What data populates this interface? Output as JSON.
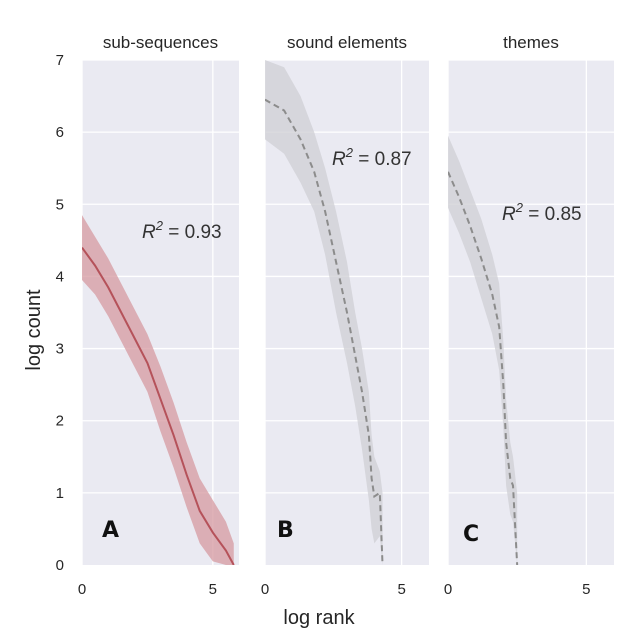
{
  "chart_data": {
    "type": "line",
    "ylabel": "log count",
    "xlabel": "log rank",
    "ylim": [
      0,
      7
    ],
    "yticks": [
      "0",
      "1",
      "2",
      "3",
      "4",
      "5",
      "6",
      "7"
    ],
    "grid": true,
    "panels": [
      {
        "title": "sub-sequences",
        "letter": "A",
        "annotation": "R² = 0.93",
        "r2_prefix": "R",
        "r2_exp": "2",
        "r2_value": " = 0.93",
        "xlim": [
          0,
          6
        ],
        "xticks": [
          "0",
          "5"
        ],
        "color": "#b5525a",
        "band_color": "#d59aa0",
        "style": "solid",
        "series": {
          "x": [
            0,
            0.5,
            1.0,
            1.5,
            2.0,
            2.5,
            3.0,
            3.5,
            4.0,
            4.5,
            5.0,
            5.5,
            5.8
          ],
          "y": [
            4.4,
            4.15,
            3.85,
            3.5,
            3.15,
            2.8,
            2.3,
            1.8,
            1.25,
            0.75,
            0.45,
            0.2,
            0.0
          ],
          "upper": [
            4.85,
            4.55,
            4.25,
            3.9,
            3.55,
            3.2,
            2.75,
            2.25,
            1.7,
            1.2,
            0.9,
            0.6,
            0.3
          ],
          "lower": [
            3.95,
            3.75,
            3.45,
            3.1,
            2.75,
            2.4,
            1.85,
            1.35,
            0.8,
            0.3,
            0.05,
            0.0,
            0.0
          ]
        }
      },
      {
        "title": "sound elements",
        "letter": "B",
        "annotation": "R² = 0.87",
        "r2_prefix": "R",
        "r2_exp": "2",
        "r2_value": " = 0.87",
        "xlim": [
          0,
          6
        ],
        "xticks": [
          "0",
          "5"
        ],
        "color": "#8c8c8c",
        "band_color": "#cfcfd4",
        "style": "dashed",
        "series": {
          "x": [
            0,
            0.7,
            1.3,
            1.8,
            2.2,
            2.6,
            3.0,
            3.3,
            3.55,
            3.8,
            3.9,
            4.0,
            4.2,
            4.3
          ],
          "y": [
            6.45,
            6.3,
            5.9,
            5.45,
            4.9,
            4.2,
            3.5,
            2.9,
            2.4,
            1.8,
            1.2,
            0.95,
            1.0,
            0.0
          ],
          "upper": [
            7.0,
            6.9,
            6.5,
            6.0,
            5.5,
            4.9,
            4.2,
            3.5,
            3.0,
            2.4,
            1.8,
            1.5,
            1.3,
            1.0
          ],
          "lower": [
            5.9,
            5.7,
            5.3,
            4.9,
            4.3,
            3.5,
            2.8,
            2.2,
            1.6,
            0.9,
            0.5,
            0.3,
            0.4,
            0.0
          ]
        }
      },
      {
        "title": "themes",
        "letter": "C",
        "annotation": "R² = 0.85",
        "r2_prefix": "R",
        "r2_exp": "2",
        "r2_value": " = 0.85",
        "xlim": [
          0,
          6
        ],
        "xticks": [
          "0",
          "5"
        ],
        "color": "#8c8c8c",
        "band_color": "#cfcfd4",
        "style": "dashed",
        "series": {
          "x": [
            0,
            0.4,
            0.8,
            1.2,
            1.6,
            1.85,
            2.0,
            2.1,
            2.25,
            2.35,
            2.5
          ],
          "y": [
            5.45,
            5.1,
            4.7,
            4.25,
            3.75,
            3.3,
            2.5,
            1.7,
            1.2,
            1.1,
            0.0
          ],
          "upper": [
            5.95,
            5.6,
            5.2,
            4.8,
            4.3,
            3.9,
            3.1,
            2.3,
            1.7,
            1.5,
            1.0
          ],
          "lower": [
            4.95,
            4.6,
            4.2,
            3.7,
            3.2,
            2.7,
            1.9,
            1.1,
            0.7,
            0.6,
            0.0
          ]
        }
      }
    ]
  }
}
